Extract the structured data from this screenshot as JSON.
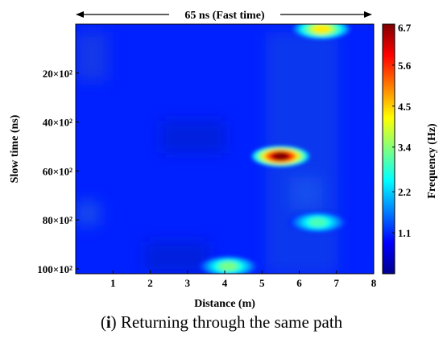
{
  "chart_data": {
    "type": "heatmap",
    "top_annotation": "65 ns (Fast time)",
    "xlabel": "Distance (m)",
    "ylabel": "Slow time (ns)",
    "colorbar_label": "Frequency (Hz)",
    "x_ticks": [
      "1",
      "2",
      "3",
      "4",
      "5",
      "6",
      "7",
      "8"
    ],
    "y_ticks": [
      "20×10²",
      "40×10²",
      "60×10²",
      "80×10²",
      "100×10²"
    ],
    "y_tick_values": [
      2000,
      4000,
      6000,
      8000,
      10000
    ],
    "colorbar_ticks": [
      "1.1",
      "2.2",
      "3.4",
      "4.5",
      "5.6",
      "6.7"
    ],
    "colorbar_tick_values": [
      1.1,
      2.2,
      3.4,
      4.5,
      5.6,
      6.7
    ],
    "xlim": [
      0,
      8
    ],
    "ylim": [
      0,
      10200
    ],
    "clim": [
      0,
      6.7
    ],
    "colormap": "jet",
    "background_level": 0.5,
    "hotspots": [
      {
        "x": 6.6,
        "y": 200,
        "value": 4.3
      },
      {
        "x": 5.5,
        "y": 5400,
        "value": 6.7
      },
      {
        "x": 6.5,
        "y": 8100,
        "value": 3.0
      },
      {
        "x": 4.1,
        "y": 9900,
        "value": 3.3
      }
    ]
  },
  "caption": {
    "label": "i",
    "text": " Returning through the same path"
  }
}
